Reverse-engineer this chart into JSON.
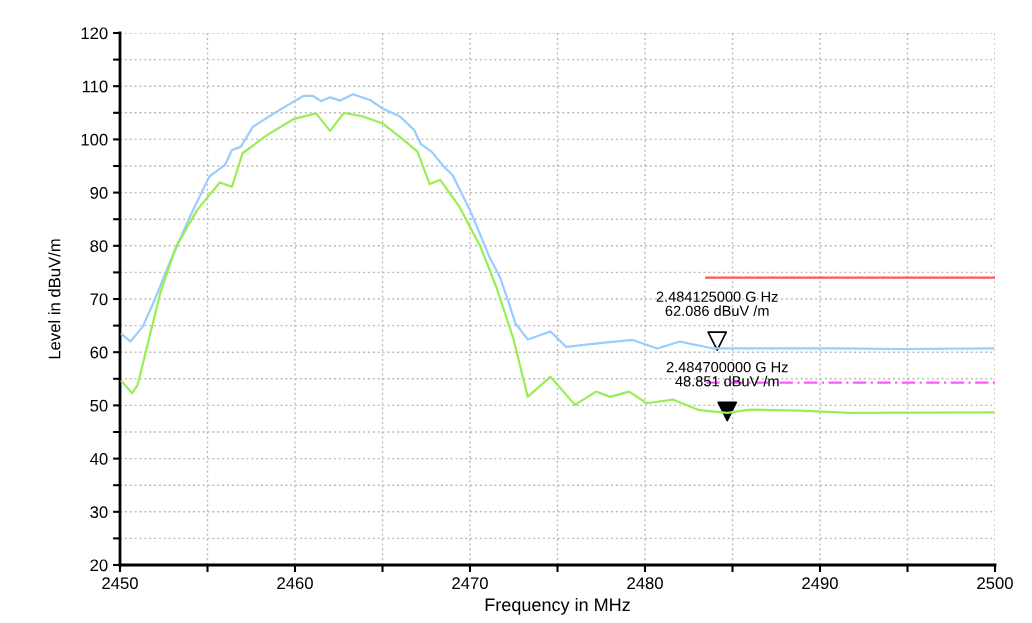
{
  "chart_data": {
    "type": "line",
    "xlabel": "Frequency in MHz",
    "ylabel": "Level in dBuV/m",
    "xlim": [
      2450,
      2500
    ],
    "ylim": [
      20,
      120
    ],
    "xticks": [
      2450,
      {
        "value": 2455,
        "label": null
      },
      2460,
      {
        "value": 2465,
        "label": null
      },
      2470,
      {
        "value": 2475,
        "label": null
      },
      2480,
      {
        "value": 2485,
        "label": null
      },
      2490,
      {
        "value": 2495,
        "label": null
      },
      2500
    ],
    "yticks": [
      20,
      {
        "value": 25,
        "label": null
      },
      30,
      {
        "value": 35,
        "label": null
      },
      40,
      {
        "value": 45,
        "label": null
      },
      50,
      {
        "value": 55,
        "label": null
      },
      60,
      {
        "value": 65,
        "label": null
      },
      70,
      {
        "value": 75,
        "label": null
      },
      80,
      {
        "value": 85,
        "label": null
      },
      90,
      {
        "value": 95,
        "label": null
      },
      100,
      {
        "value": 105,
        "label": null
      },
      110,
      {
        "value": 115,
        "label": null
      },
      120
    ],
    "grid": true,
    "line_style": "solid",
    "marker": "none",
    "series": [
      {
        "color": "#99ccff",
        "x": [
          2450.1,
          2450.6,
          2451.3,
          2451.9,
          2452.9,
          2454.0,
          2455.1,
          2456.0,
          2456.4,
          2456.9,
          2457.6,
          2459.1,
          2460.5,
          2461.0,
          2461.5,
          2462.0,
          2462.6,
          2463.3,
          2464.3,
          2465.0,
          2466.0,
          2466.8,
          2467.2,
          2467.8,
          2468.5,
          2469.0,
          2470.0,
          2471.1,
          2471.7,
          2472.1,
          2472.6,
          2473.3,
          2474.6,
          2475.5,
          2477.4,
          2479.3,
          2480.7,
          2482.0,
          2483.9,
          2485.0,
          2487.8,
          2490.8,
          2494.6,
          2499.9
        ],
        "values": [
          63.4,
          62.0,
          64.8,
          69.2,
          77.3,
          85.5,
          93.0,
          95.2,
          98.0,
          98.6,
          102.4,
          105.5,
          108.2,
          108.2,
          107.2,
          107.9,
          107.3,
          108.5,
          107.4,
          105.8,
          104.3,
          101.8,
          99.1,
          97.7,
          94.9,
          93.3,
          86.7,
          78.0,
          74.2,
          70.4,
          65.4,
          62.4,
          63.9,
          61.0,
          61.7,
          62.3,
          60.7,
          62.0,
          60.7,
          60.7,
          60.7,
          60.7,
          60.6,
          60.7
        ]
      },
      {
        "color": "#99ee55",
        "x": [
          2450.1,
          2450.7,
          2451.0,
          2451.5,
          2452.3,
          2453.2,
          2454.4,
          2455.7,
          2456.4,
          2457.0,
          2458.4,
          2459.9,
          2461.2,
          2462.0,
          2462.8,
          2463.9,
          2465.0,
          2466.2,
          2467.0,
          2467.7,
          2468.3,
          2469.4,
          2470.6,
          2471.5,
          2472.5,
          2473.3,
          2474.6,
          2476.0,
          2477.2,
          2478.0,
          2479.1,
          2480.1,
          2481.6,
          2483.1,
          2484.7,
          2486.0,
          2488.9,
          2491.7,
          2499.9
        ],
        "values": [
          54.5,
          52.3,
          53.8,
          60.4,
          71.1,
          79.8,
          86.7,
          91.9,
          91.1,
          97.4,
          100.8,
          103.8,
          104.9,
          101.6,
          105.0,
          104.3,
          103.0,
          99.9,
          97.7,
          91.6,
          92.4,
          87.3,
          79.8,
          72.3,
          62.3,
          51.6,
          55.4,
          50.1,
          52.6,
          51.6,
          52.6,
          50.4,
          51.1,
          49.1,
          48.6,
          49.2,
          49.0,
          48.6,
          48.7
        ]
      },
      {
        "color": "#ff5555",
        "x": [
          2483.5,
          2500
        ],
        "values": [
          74,
          74
        ]
      },
      {
        "color": "#ff55ff",
        "x": [
          2483.5,
          2500
        ],
        "values": [
          54.3,
          54.3
        ],
        "line_style": "dashed"
      },
      {
        "type": "scatter",
        "color": "#ffffff",
        "marker": "triangle",
        "x": [
          2484.125
        ],
        "values": [
          62.086
        ]
      },
      {
        "type": "scatter",
        "color": "#000000",
        "marker": "triangle",
        "x": [
          2484.7
        ],
        "values": [
          48.851
        ]
      }
    ],
    "annotations": [
      {
        "text": "2.484125000 G Hz\n62.086 dBuV /m",
        "x": 2484.125,
        "y": 62.086
      },
      {
        "text": "2.484700000 G Hz\n48.851 dBuV /m",
        "x": 2484.7,
        "y": 48.851
      }
    ]
  }
}
